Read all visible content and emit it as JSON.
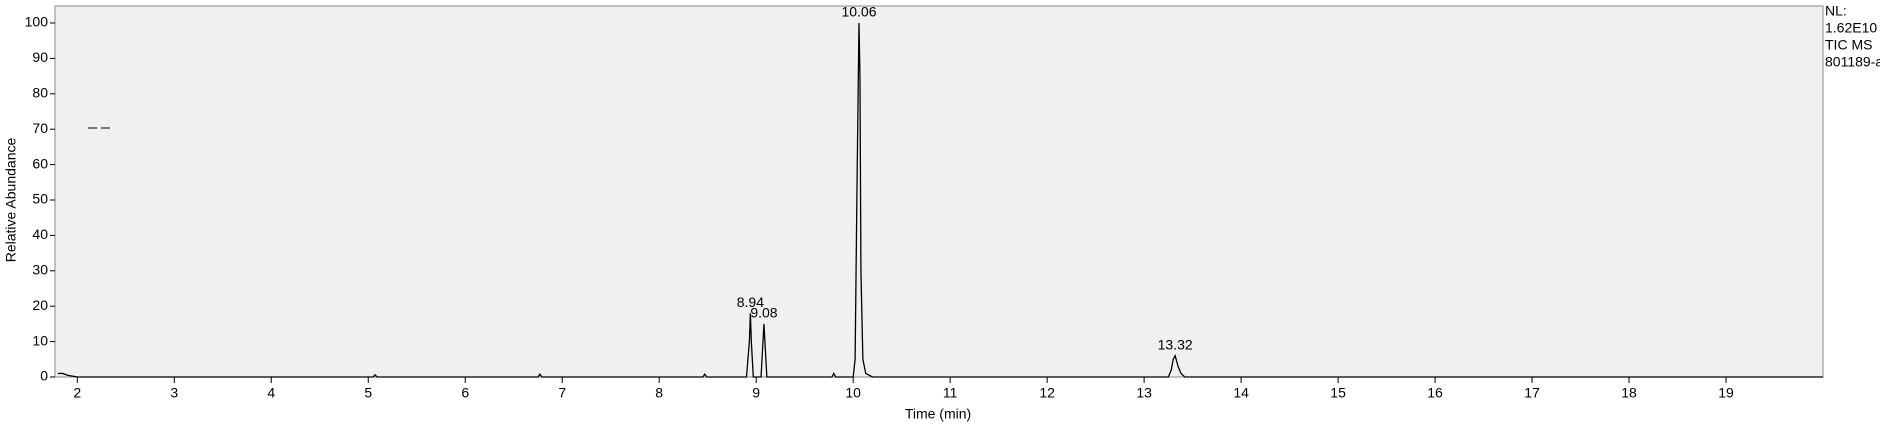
{
  "chart_data": {
    "type": "line",
    "xlabel": "Time (min)",
    "ylabel": "Relative Abundance",
    "info": [
      "NL:",
      "1.62E10",
      "TIC  MS",
      "801189-a"
    ],
    "xlim": [
      1.77,
      20
    ],
    "xticks": [
      2,
      3,
      4,
      5,
      6,
      7,
      8,
      9,
      10,
      11,
      12,
      13,
      14,
      15,
      16,
      17,
      18,
      19
    ],
    "ylim": [
      0,
      100
    ],
    "yticks": [
      0,
      10,
      20,
      30,
      40,
      50,
      60,
      70,
      80,
      90,
      100
    ],
    "series": [
      {
        "color": "#000000",
        "x": [
          1.8,
          1.85,
          1.9,
          2.0,
          5.05,
          5.07,
          5.09,
          6.75,
          6.77,
          6.79,
          8.45,
          8.47,
          8.49,
          8.9,
          8.93,
          8.94,
          8.95,
          8.97,
          9.05,
          9.07,
          9.08,
          9.09,
          9.11,
          9.78,
          9.8,
          9.82,
          10.0,
          10.02,
          10.04,
          10.06,
          10.07,
          10.08,
          10.1,
          10.13,
          10.2,
          13.25,
          13.28,
          13.3,
          13.32,
          13.35,
          13.38,
          13.42,
          20
        ],
        "values": [
          1,
          1,
          0.5,
          0,
          0,
          0.6,
          0,
          0,
          0.8,
          0,
          0,
          0.8,
          0,
          0,
          10,
          18,
          10,
          0,
          0,
          10,
          15,
          10,
          0,
          0,
          1,
          0,
          0,
          5,
          55,
          100,
          85,
          30,
          5,
          1,
          0,
          0,
          2,
          5,
          6,
          3,
          1,
          0,
          0
        ]
      }
    ],
    "peaks": [
      {
        "x": 8.94,
        "y": 18
      },
      {
        "x": 9.08,
        "y": 15
      },
      {
        "x": 10.06,
        "y": 100
      },
      {
        "x": 13.32,
        "y": 6
      }
    ]
  }
}
